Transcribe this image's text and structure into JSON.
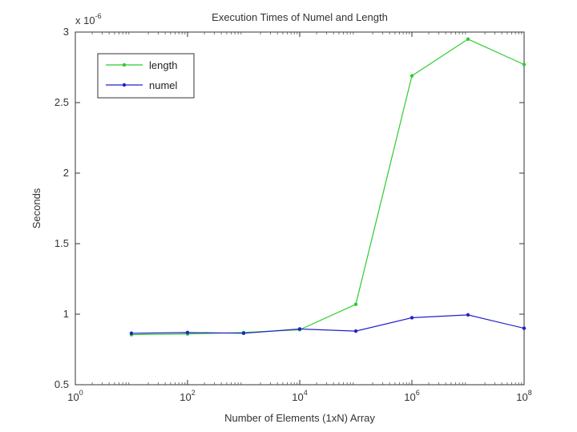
{
  "chart_data": {
    "type": "line",
    "title": "Execution Times of Numel and Length",
    "xlabel": "Number of Elements (1xN) Array",
    "ylabel": "Seconds",
    "x_scale": "log",
    "xlim": [
      1,
      100000000
    ],
    "ylim": [
      0.5,
      3
    ],
    "y_exponent_label": "x 10",
    "y_exponent": "-6",
    "x_ticks": [
      {
        "value": 1,
        "base": "10",
        "exp": "0"
      },
      {
        "value": 100,
        "base": "10",
        "exp": "2"
      },
      {
        "value": 10000,
        "base": "10",
        "exp": "4"
      },
      {
        "value": 1000000,
        "base": "10",
        "exp": "6"
      },
      {
        "value": 100000000,
        "base": "10",
        "exp": "8"
      }
    ],
    "y_ticks": [
      {
        "value": 0.5,
        "label": "0.5"
      },
      {
        "value": 1,
        "label": "1"
      },
      {
        "value": 1.5,
        "label": "1.5"
      },
      {
        "value": 2,
        "label": "2"
      },
      {
        "value": 2.5,
        "label": "2.5"
      },
      {
        "value": 3,
        "label": "3"
      }
    ],
    "x": [
      10,
      100,
      1000,
      10000,
      100000,
      1000000,
      10000000,
      100000000
    ],
    "series": [
      {
        "name": "length",
        "color": "#2ecc2e",
        "values": [
          0.855,
          0.86,
          0.87,
          0.89,
          1.07,
          2.69,
          2.95,
          2.77
        ]
      },
      {
        "name": "numel",
        "color": "#2020cc",
        "values": [
          0.865,
          0.87,
          0.865,
          0.895,
          0.88,
          0.975,
          0.995,
          0.9
        ]
      }
    ],
    "grid": false,
    "legend_position": "top-left"
  }
}
